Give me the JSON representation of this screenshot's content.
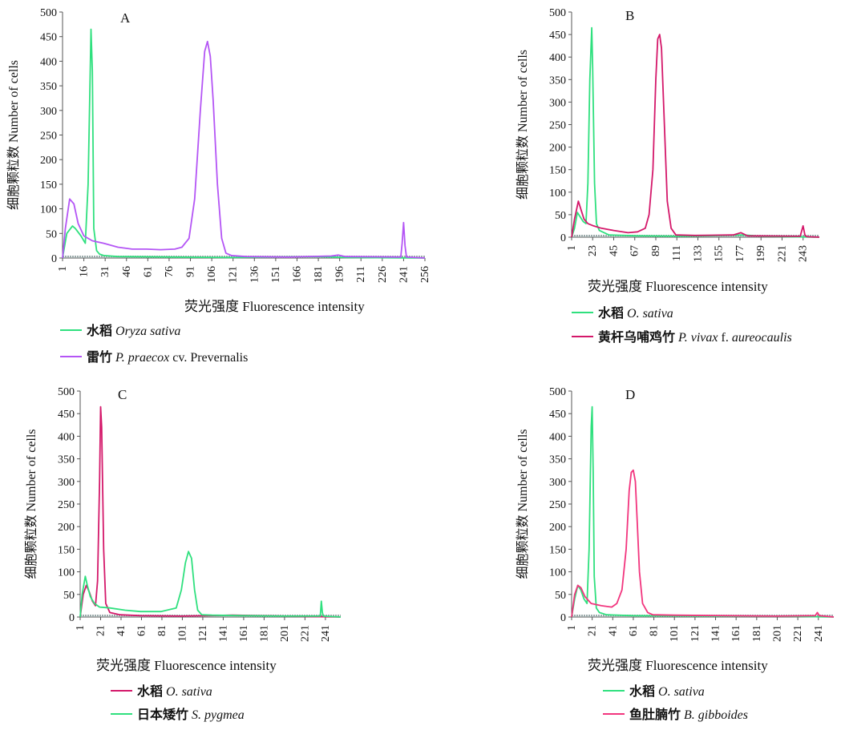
{
  "colors": {
    "green": "#2fe07e",
    "purple": "#b455f5",
    "crimson": "#d4186a",
    "pink": "#f2357e",
    "axis": "#555555",
    "baseline": "#9aa9a9"
  },
  "chart_data": [
    {
      "type": "line",
      "panel": "A",
      "xlabel": "荧光强度 Fluorescence intensity",
      "ylabel": "细胞颗粒数 Number of cells",
      "ylim": [
        0,
        500
      ],
      "yticks": [
        "0",
        "50",
        "100",
        "150",
        "200",
        "250",
        "300",
        "350",
        "400",
        "450",
        "500"
      ],
      "xlim": [
        1,
        256
      ],
      "xticks": [
        "1",
        "16",
        "31",
        "46",
        "61",
        "76",
        "91",
        "106",
        "121",
        "136",
        "151",
        "166",
        "181",
        "196",
        "211",
        "226",
        "241",
        "256"
      ],
      "series": [
        {
          "name": "Oryza sativa",
          "legend_cn": "水稻",
          "legend_it": "Oryza sativa",
          "legend_rest": "",
          "color": "green",
          "x": [
            1,
            4,
            8,
            10,
            14,
            17,
            19,
            21,
            22,
            23,
            25,
            27,
            30,
            40,
            80,
            120,
            180,
            200,
            256
          ],
          "y": [
            0,
            50,
            65,
            60,
            45,
            30,
            150,
            465,
            380,
            60,
            15,
            8,
            5,
            3,
            2,
            1,
            3,
            1,
            0
          ]
        },
        {
          "name": "P. praecox cv. Prevernalis",
          "legend_cn": "雷竹",
          "legend_it": "P. praecox",
          "legend_rest": " cv. Prevernalis",
          "color": "purple",
          "x": [
            1,
            3,
            6,
            9,
            12,
            16,
            22,
            30,
            40,
            50,
            60,
            70,
            80,
            85,
            90,
            94,
            98,
            101,
            103,
            105,
            107,
            110,
            113,
            116,
            120,
            130,
            160,
            190,
            195,
            200,
            239,
            240,
            241,
            242,
            243,
            256
          ],
          "y": [
            0,
            60,
            120,
            110,
            70,
            45,
            35,
            30,
            22,
            18,
            18,
            17,
            18,
            22,
            40,
            120,
            300,
            420,
            440,
            410,
            320,
            150,
            40,
            10,
            5,
            3,
            2,
            4,
            6,
            3,
            2,
            30,
            72,
            25,
            2,
            0
          ]
        }
      ],
      "legend_position": "bottom"
    },
    {
      "type": "line",
      "panel": "B",
      "xlabel": "荧光强度 Fluorescence intensity",
      "ylabel": "细胞颗粒数 Number of cells",
      "ylim": [
        0,
        500
      ],
      "yticks": [
        "0",
        "50",
        "100",
        "150",
        "200",
        "250",
        "300",
        "350",
        "400",
        "450",
        "500"
      ],
      "xlim": [
        1,
        260
      ],
      "xticks": [
        "1",
        "23",
        "45",
        "67",
        "89",
        "111",
        "133",
        "155",
        "177",
        "199",
        "221",
        "243"
      ],
      "series": [
        {
          "name": "O. sativa",
          "legend_cn": "水稻",
          "legend_it": "O. sativa",
          "legend_rest": "",
          "color": "green",
          "x": [
            1,
            4,
            7,
            10,
            13,
            16,
            18,
            20,
            22,
            23,
            25,
            27,
            30,
            40,
            70,
            120,
            180,
            200,
            260
          ],
          "y": [
            0,
            20,
            55,
            45,
            35,
            30,
            120,
            350,
            465,
            380,
            120,
            30,
            15,
            5,
            3,
            2,
            5,
            2,
            0
          ]
        },
        {
          "name": "P. vivax f. aureocaulis",
          "legend_cn": "黄杆乌哺鸡竹",
          "legend_it": "P. vivax",
          "legend_rest": " f. aureocaulis",
          "color": "crimson",
          "x": [
            1,
            4,
            8,
            11,
            14,
            18,
            24,
            32,
            45,
            60,
            70,
            78,
            82,
            86,
            89,
            91,
            93,
            95,
            98,
            101,
            105,
            110,
            130,
            170,
            178,
            185,
            240,
            243,
            245,
            247,
            260
          ],
          "y": [
            0,
            40,
            80,
            60,
            40,
            30,
            25,
            20,
            15,
            10,
            12,
            20,
            50,
            150,
            350,
            440,
            450,
            420,
            250,
            80,
            20,
            5,
            4,
            5,
            10,
            3,
            2,
            25,
            4,
            1,
            0
          ]
        }
      ],
      "legend_position": "bottom"
    },
    {
      "type": "line",
      "panel": "C",
      "xlabel": "荧光强度 Fluorescence intensity",
      "ylabel": "细胞颗粒数 Number of cells",
      "ylim": [
        0,
        500
      ],
      "yticks": [
        "0",
        "50",
        "100",
        "150",
        "200",
        "250",
        "300",
        "350",
        "400",
        "450",
        "500"
      ],
      "xlim": [
        1,
        256
      ],
      "xticks": [
        "1",
        "21",
        "41",
        "61",
        "81",
        "101",
        "121",
        "141",
        "161",
        "181",
        "201",
        "221",
        "241"
      ],
      "series": [
        {
          "name": "O. sativa",
          "legend_cn": "水稻",
          "legend_it": "O. sativa",
          "legend_rest": "",
          "color": "crimson",
          "x": [
            1,
            4,
            7,
            10,
            13,
            16,
            18,
            20,
            21,
            22,
            24,
            26,
            30,
            40,
            60,
            100,
            150,
            200,
            256
          ],
          "y": [
            0,
            50,
            70,
            55,
            35,
            25,
            80,
            300,
            465,
            420,
            150,
            30,
            10,
            5,
            3,
            2,
            4,
            2,
            0
          ]
        },
        {
          "name": "S. pygmea",
          "legend_cn": "日本矮竹",
          "legend_it": "S. pygmea",
          "legend_rest": "",
          "color": "green",
          "x": [
            1,
            3,
            6,
            8,
            11,
            15,
            20,
            30,
            45,
            60,
            80,
            95,
            100,
            104,
            107,
            110,
            113,
            116,
            120,
            130,
            160,
            200,
            236,
            237,
            238,
            239,
            256
          ],
          "y": [
            0,
            50,
            90,
            70,
            45,
            30,
            22,
            20,
            15,
            12,
            12,
            20,
            60,
            120,
            145,
            130,
            60,
            15,
            5,
            4,
            3,
            2,
            2,
            35,
            10,
            2,
            0
          ]
        }
      ],
      "legend_position": "bottom"
    },
    {
      "type": "line",
      "panel": "D",
      "xlabel": "荧光强度 Fluorescence intensity",
      "ylabel": "细胞颗粒数 Number of cells",
      "ylim": [
        0,
        500
      ],
      "yticks": [
        "0",
        "50",
        "100",
        "150",
        "200",
        "250",
        "300",
        "350",
        "400",
        "450",
        "500"
      ],
      "xlim": [
        1,
        256
      ],
      "xticks": [
        "1",
        "21",
        "41",
        "61",
        "81",
        "101",
        "121",
        "141",
        "161",
        "181",
        "201",
        "221",
        "241"
      ],
      "series": [
        {
          "name": "O. sativa",
          "legend_cn": "水稻",
          "legend_it": "O. sativa",
          "legend_rest": "",
          "color": "green",
          "x": [
            1,
            4,
            7,
            10,
            13,
            16,
            18,
            20,
            21,
            22,
            23,
            25,
            28,
            35,
            60,
            120,
            200,
            256
          ],
          "y": [
            0,
            40,
            70,
            60,
            40,
            30,
            150,
            420,
            465,
            320,
            90,
            20,
            10,
            5,
            3,
            2,
            2,
            0
          ]
        },
        {
          "name": "B. gibboides",
          "legend_cn": "鱼肚腩竹",
          "legend_it": "B. gibboides",
          "legend_rest": "",
          "color": "pink",
          "x": [
            1,
            4,
            7,
            10,
            14,
            20,
            30,
            40,
            45,
            50,
            54,
            57,
            59,
            61,
            63,
            65,
            67,
            70,
            75,
            80,
            100,
            150,
            200,
            238,
            240,
            242,
            256
          ],
          "y": [
            0,
            50,
            70,
            65,
            45,
            30,
            25,
            22,
            30,
            60,
            150,
            280,
            320,
            325,
            300,
            200,
            100,
            30,
            10,
            5,
            4,
            3,
            2,
            3,
            10,
            3,
            0
          ]
        }
      ],
      "legend_position": "bottom"
    }
  ]
}
